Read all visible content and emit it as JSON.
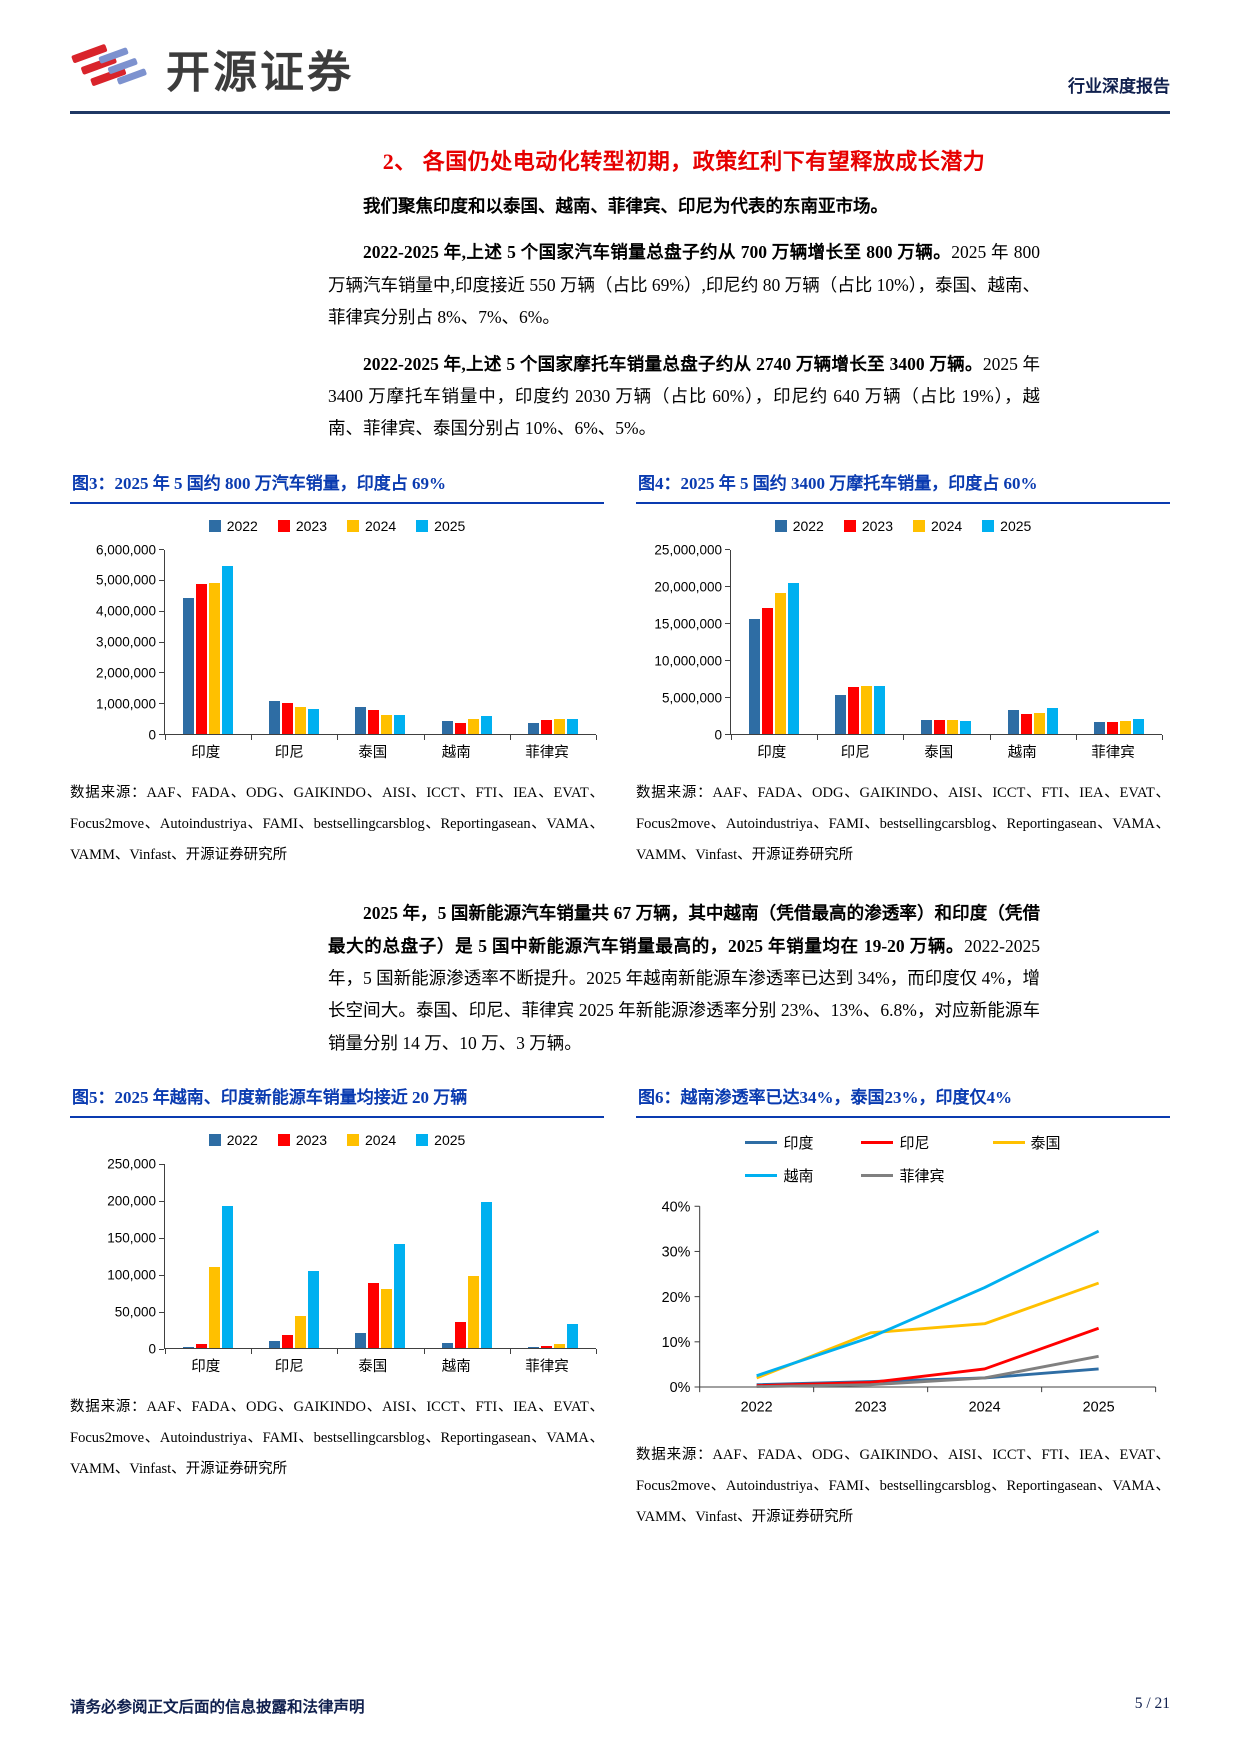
{
  "header": {
    "brand": "开源证券",
    "report_type": "行业深度报告"
  },
  "section_heading": "2、 各国仍处电动化转型初期，政策红利下有望释放成长潜力",
  "paragraphs": {
    "p1": "我们聚焦印度和以泰国、越南、菲律宾、印尼为代表的东南亚市场。",
    "p2_bold": "2022-2025 年,上述 5 个国家汽车销量总盘子约从 700 万辆增长至 800 万辆。",
    "p2_rest": "2025 年 800 万辆汽车销量中,印度接近 550 万辆（占比 69%）,印尼约 80 万辆（占比 10%），泰国、越南、菲律宾分别占 8%、7%、6%。",
    "p3_bold": "2022-2025 年,上述 5 个国家摩托车销量总盘子约从 2740 万辆增长至 3400 万辆。",
    "p3_rest": "2025 年 3400 万摩托车销量中，印度约 2030 万辆（占比 60%），印尼约 640 万辆（占比 19%），越南、菲律宾、泰国分别占 10%、6%、5%。",
    "p4_bold": "2025 年，5 国新能源汽车销量共 67 万辆，其中越南（凭借最高的渗透率）和印度（凭借最大的总盘子）是 5 国中新能源汽车销量最高的，2025 年销量均在 19-20 万辆。",
    "p4_rest": "2022-2025 年，5 国新能源渗透率不断提升。2025 年越南新能源车渗透率已达到 34%，而印度仅 4%，增长空间大。泰国、印尼、菲律宾 2025 年新能源渗透率分别 23%、13%、6.8%，对应新能源车销量分别 14 万、10 万、3 万辆。"
  },
  "figures": [
    {
      "title": "图3：2025 年 5 国约 800 万汽车销量，印度占 69%",
      "source": "数据来源：AAF、FADA、ODG、GAIKINDO、AISI、ICCT、FTI、IEA、EVAT、Focus2move、Autoindustriya、FAMI、bestsellingcarsblog、Reportingasean、VAMA、VAMM、Vinfast、开源证券研究所"
    },
    {
      "title": "图4：2025 年 5 国约 3400 万摩托车销量，印度占 60%",
      "source": "数据来源：AAF、FADA、ODG、GAIKINDO、AISI、ICCT、FTI、IEA、EVAT、Focus2move、Autoindustriya、FAMI、bestsellingcarsblog、Reportingasean、VAMA、VAMM、Vinfast、开源证券研究所"
    },
    {
      "title": "图5：2025 年越南、印度新能源车销量均接近 20 万辆",
      "source": "数据来源：AAF、FADA、ODG、GAIKINDO、AISI、ICCT、FTI、IEA、EVAT、Focus2move、Autoindustriya、FAMI、bestsellingcarsblog、Reportingasean、VAMA、VAMM、Vinfast、开源证券研究所"
    },
    {
      "title": "图6：越南渗透率已达34%，泰国23%，印度仅4%",
      "source": "数据来源：AAF、FADA、ODG、GAIKINDO、AISI、ICCT、FTI、IEA、EVAT、Focus2move、Autoindustriya、FAMI、bestsellingcarsblog、Reportingasean、VAMA、VAMM、Vinfast、开源证券研究所"
    }
  ],
  "chart_data": [
    {
      "type": "bar",
      "title": "2025 年 5 国约 800 万汽车销量，印度占 69%",
      "categories": [
        "印度",
        "印尼",
        "泰国",
        "越南",
        "菲律宾"
      ],
      "series": [
        {
          "name": "2022",
          "color": "#2e6da4",
          "values": [
            4400000,
            1050000,
            850000,
            400000,
            350000
          ]
        },
        {
          "name": "2023",
          "color": "#ff0000",
          "values": [
            4850000,
            1000000,
            780000,
            350000,
            430000
          ]
        },
        {
          "name": "2024",
          "color": "#ffc000",
          "values": [
            4900000,
            870000,
            600000,
            480000,
            470000
          ]
        },
        {
          "name": "2025",
          "color": "#00b0f0",
          "values": [
            5450000,
            800000,
            620000,
            580000,
            480000
          ]
        }
      ],
      "ylim": [
        0,
        6000000
      ],
      "ystep": 1000000,
      "ytick_labels": [
        "0",
        "1,000,000",
        "2,000,000",
        "3,000,000",
        "4,000,000",
        "5,000,000",
        "6,000,000"
      ],
      "grid": false,
      "legend_position": "top"
    },
    {
      "type": "bar",
      "title": "2025 年 5 国约 3400 万摩托车销量，印度占 60%",
      "categories": [
        "印度",
        "印尼",
        "泰国",
        "越南",
        "菲律宾"
      ],
      "series": [
        {
          "name": "2022",
          "color": "#2e6da4",
          "values": [
            15500000,
            5200000,
            1800000,
            3200000,
            1600000
          ]
        },
        {
          "name": "2023",
          "color": "#ff0000",
          "values": [
            17000000,
            6300000,
            1900000,
            2700000,
            1600000
          ]
        },
        {
          "name": "2024",
          "color": "#ffc000",
          "values": [
            19000000,
            6400000,
            1800000,
            2800000,
            1700000
          ]
        },
        {
          "name": "2025",
          "color": "#00b0f0",
          "values": [
            20300000,
            6400000,
            1700000,
            3400000,
            2000000
          ]
        }
      ],
      "ylim": [
        0,
        25000000
      ],
      "ystep": 5000000,
      "ytick_labels": [
        "0",
        "5,000,000",
        "10,000,000",
        "15,000,000",
        "20,000,000",
        "25,000,000"
      ],
      "grid": false,
      "legend_position": "top"
    },
    {
      "type": "bar",
      "title": "2025 年越南、印度新能源车销量均接近 20 万辆",
      "categories": [
        "印度",
        "印尼",
        "泰国",
        "越南",
        "菲律宾"
      ],
      "series": [
        {
          "name": "2022",
          "color": "#2e6da4",
          "values": [
            2000,
            10000,
            20000,
            7000,
            1000
          ]
        },
        {
          "name": "2023",
          "color": "#ff0000",
          "values": [
            5000,
            17000,
            88000,
            35000,
            3000
          ]
        },
        {
          "name": "2024",
          "color": "#ffc000",
          "values": [
            110000,
            43000,
            80000,
            97000,
            5000
          ]
        },
        {
          "name": "2025",
          "color": "#00b0f0",
          "values": [
            192000,
            104000,
            140000,
            197000,
            32000
          ]
        }
      ],
      "ylim": [
        0,
        250000
      ],
      "ystep": 50000,
      "ytick_labels": [
        "0",
        "50,000",
        "100,000",
        "150,000",
        "200,000",
        "250,000"
      ],
      "grid": false,
      "legend_position": "top"
    },
    {
      "type": "line",
      "title": "越南渗透率已达34%，泰国23%，印度仅4%",
      "x": [
        "2022",
        "2023",
        "2024",
        "2025"
      ],
      "series": [
        {
          "name": "印度",
          "color": "#2e6da4",
          "values": [
            0.5,
            1.2,
            2.0,
            4.0
          ]
        },
        {
          "name": "印尼",
          "color": "#ff0000",
          "values": [
            0.3,
            1.0,
            4.0,
            13.0
          ]
        },
        {
          "name": "泰国",
          "color": "#ffc000",
          "values": [
            2.0,
            12.0,
            14.0,
            23.0
          ]
        },
        {
          "name": "越南",
          "color": "#00b0f0",
          "values": [
            2.5,
            11.0,
            22.0,
            34.5
          ]
        },
        {
          "name": "菲律宾",
          "color": "#808080",
          "values": [
            0.1,
            0.5,
            2.0,
            6.8
          ]
        }
      ],
      "ylim": [
        0,
        40
      ],
      "ystep": 10,
      "ytick_labels": [
        "0%",
        "10%",
        "20%",
        "30%",
        "40%"
      ],
      "grid": false,
      "legend_position": "top"
    }
  ],
  "footer": {
    "disclaimer": "请务必参阅正文后面的信息披露和法律声明",
    "page": "5 / 21"
  }
}
